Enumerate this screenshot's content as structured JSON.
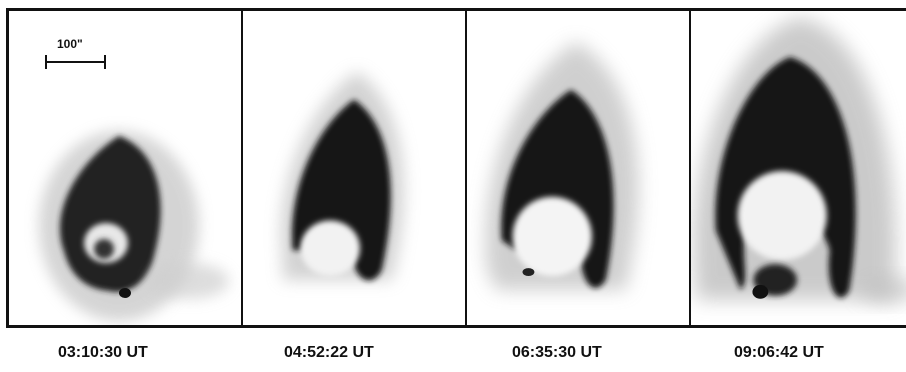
{
  "scale_label": "100\"",
  "frames": [
    {
      "time": "03:10:30 UT"
    },
    {
      "time": "04:52:22 UT"
    },
    {
      "time": "06:35:30 UT"
    },
    {
      "time": "09:06:42 UT"
    }
  ]
}
